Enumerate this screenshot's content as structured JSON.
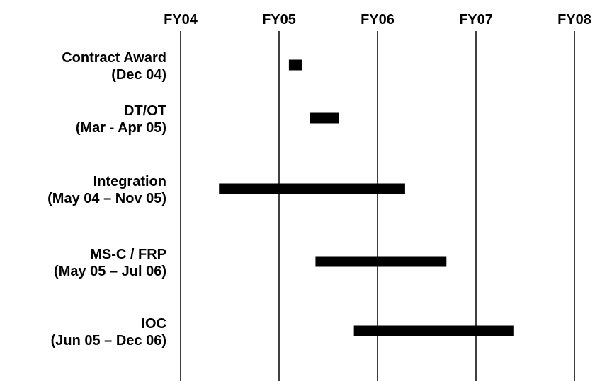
{
  "chart_data": {
    "type": "gantt",
    "title": "",
    "fiscal_years": [
      "FY04",
      "FY05",
      "FY06",
      "FY07",
      "FY08"
    ],
    "grid": true,
    "bar_color": "#000000",
    "tasks": [
      {
        "label": "Contract Award",
        "dates": "(Dec 04)",
        "start": 1.1,
        "end": 1.23
      },
      {
        "label": "DT/OT",
        "dates": "(Mar - Apr 05)",
        "start": 1.31,
        "end": 1.61
      },
      {
        "label": "Integration",
        "dates": "(May 04 – Nov 05)",
        "start": 0.39,
        "end": 2.28
      },
      {
        "label": "MS-C / FRP",
        "dates": "(May 05 – Jul 06)",
        "start": 1.37,
        "end": 2.7
      },
      {
        "label": "IOC",
        "dates": "(Jun 05 – Dec 06)",
        "start": 1.76,
        "end": 3.38
      }
    ]
  }
}
